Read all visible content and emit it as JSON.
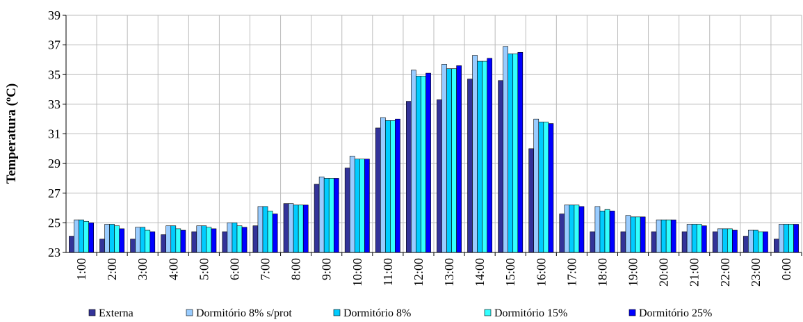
{
  "chart_data": {
    "type": "bar",
    "y_label": "Temperatura (ºC)",
    "categories": [
      "1:00",
      "2:00",
      "3:00",
      "4:00",
      "5:00",
      "6:00",
      "7:00",
      "8:00",
      "9:00",
      "10:00",
      "11:00",
      "12:00",
      "13:00",
      "14:00",
      "15:00",
      "16:00",
      "17:00",
      "18:00",
      "19:00",
      "20:00",
      "21:00",
      "22:00",
      "23:00",
      "0:00"
    ],
    "series": [
      {
        "name": "Externa",
        "color": "#333399",
        "values": [
          24.1,
          23.9,
          23.9,
          24.2,
          24.4,
          24.4,
          24.8,
          26.3,
          27.6,
          28.7,
          31.4,
          33.2,
          33.3,
          34.7,
          34.6,
          30.0,
          25.6,
          24.4,
          24.4,
          24.4,
          24.4,
          24.4,
          24.1,
          23.9
        ]
      },
      {
        "name": "Dormitório 8% s/prot",
        "color": "#99ccff",
        "values": [
          25.2,
          24.9,
          24.7,
          24.8,
          24.8,
          25.0,
          26.1,
          26.3,
          28.1,
          29.5,
          32.1,
          35.3,
          35.7,
          36.3,
          36.9,
          32.0,
          26.2,
          26.1,
          25.5,
          25.2,
          24.9,
          24.6,
          24.5,
          24.9
        ]
      },
      {
        "name": "Dormitório 8%",
        "color": "#00ccff",
        "values": [
          25.2,
          24.9,
          24.7,
          24.8,
          24.8,
          25.0,
          26.1,
          26.2,
          28.0,
          29.3,
          31.9,
          34.9,
          35.4,
          35.9,
          36.4,
          31.8,
          26.2,
          25.8,
          25.4,
          25.2,
          24.9,
          24.6,
          24.5,
          24.9
        ]
      },
      {
        "name": "Dormitório 15%",
        "color": "#33ffff",
        "values": [
          25.1,
          24.8,
          24.5,
          24.6,
          24.7,
          24.8,
          25.8,
          26.2,
          28.0,
          29.3,
          31.9,
          34.9,
          35.4,
          35.9,
          36.4,
          31.8,
          26.2,
          25.9,
          25.4,
          25.2,
          24.9,
          24.6,
          24.4,
          24.9
        ]
      },
      {
        "name": "Dormitório 25%",
        "color": "#0000ff",
        "values": [
          25.0,
          24.6,
          24.4,
          24.5,
          24.6,
          24.7,
          25.6,
          26.2,
          28.0,
          29.3,
          32.0,
          35.1,
          35.6,
          36.1,
          36.5,
          31.7,
          26.1,
          25.8,
          25.4,
          25.2,
          24.8,
          24.5,
          24.4,
          24.9
        ]
      }
    ],
    "ylim": [
      23,
      39
    ],
    "yticks": [
      23,
      25,
      27,
      29,
      31,
      33,
      35,
      37,
      39
    ],
    "grid": true,
    "legend": "bottom"
  }
}
